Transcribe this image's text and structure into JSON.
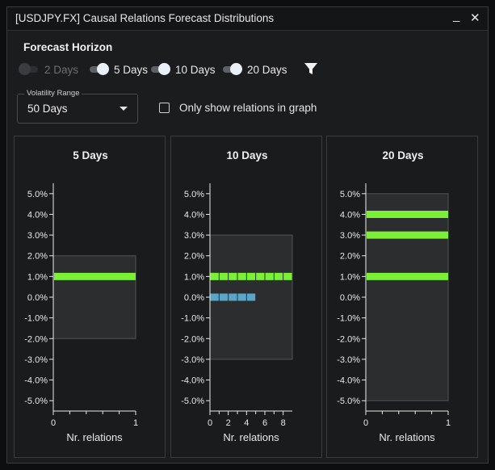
{
  "window": {
    "title": "[USDJPY.FX] Causal Relations Forecast Distributions",
    "minimize_glyph": "_",
    "close_glyph": "✕"
  },
  "forecast_horizon": {
    "label": "Forecast Horizon",
    "toggles": [
      {
        "label": "2 Days",
        "on": false
      },
      {
        "label": "5 Days",
        "on": true
      },
      {
        "label": "10 Days",
        "on": true
      },
      {
        "label": "20 Days",
        "on": true
      }
    ],
    "filter_icon": "filter-icon"
  },
  "volatility_range": {
    "legend": "Volatility Range",
    "value": "50 Days"
  },
  "only_show_relations": {
    "label": "Only show relations in graph",
    "checked": false
  },
  "colors": {
    "accent_green": "#7cf036",
    "accent_blue": "#5aa6c9",
    "range_box": "#2c2d2f"
  },
  "chart_data": [
    {
      "type": "bar",
      "title": "5 Days",
      "xlabel": "Nr. relations",
      "ylabel": "",
      "ylim": [
        -5.5,
        5.5
      ],
      "y_ticks": [
        "5.0%",
        "4.0%",
        "3.0%",
        "2.0%",
        "1.0%",
        "0.0%",
        "-1.0%",
        "-2.0%",
        "-3.0%",
        "-4.0%",
        "-5.0%"
      ],
      "y_tick_values": [
        5,
        4,
        3,
        2,
        1,
        0,
        -1,
        -2,
        -3,
        -4,
        -5
      ],
      "x_ticks": [
        "0",
        "1"
      ],
      "x_tick_values": [
        0,
        1
      ],
      "xlim": [
        0,
        1
      ],
      "minor_x_ticks": [
        0.2,
        0.4,
        0.6,
        0.8
      ],
      "range": [
        -2.0,
        2.0
      ],
      "bars": [
        {
          "y": 1.0,
          "count": 1,
          "color": "green",
          "segmented": false
        }
      ]
    },
    {
      "type": "bar",
      "title": "10 Days",
      "xlabel": "Nr. relations",
      "ylabel": "",
      "ylim": [
        -5.5,
        5.5
      ],
      "y_ticks": [
        "5.0%",
        "4.0%",
        "3.0%",
        "2.0%",
        "1.0%",
        "0.0%",
        "-1.0%",
        "-2.0%",
        "-3.0%",
        "-4.0%",
        "-5.0%"
      ],
      "y_tick_values": [
        5,
        4,
        3,
        2,
        1,
        0,
        -1,
        -2,
        -3,
        -4,
        -5
      ],
      "x_ticks": [
        "0",
        "2",
        "4",
        "6",
        "8"
      ],
      "x_tick_values": [
        0,
        2,
        4,
        6,
        8
      ],
      "xlim": [
        0,
        9
      ],
      "minor_x_ticks": [
        1,
        3,
        5,
        7
      ],
      "range": [
        -3.0,
        3.0
      ],
      "bars": [
        {
          "y": 1.0,
          "count": 9,
          "color": "green",
          "segmented": true
        },
        {
          "y": 0.0,
          "count": 5,
          "color": "blue",
          "segmented": true
        }
      ]
    },
    {
      "type": "bar",
      "title": "20 Days",
      "xlabel": "Nr. relations",
      "ylabel": "",
      "ylim": [
        -5.5,
        5.5
      ],
      "y_ticks": [
        "5.0%",
        "4.0%",
        "3.0%",
        "2.0%",
        "1.0%",
        "0.0%",
        "-1.0%",
        "-2.0%",
        "-3.0%",
        "-4.0%",
        "-5.0%"
      ],
      "y_tick_values": [
        5,
        4,
        3,
        2,
        1,
        0,
        -1,
        -2,
        -3,
        -4,
        -5
      ],
      "x_ticks": [
        "0",
        "1"
      ],
      "x_tick_values": [
        0,
        1
      ],
      "xlim": [
        0,
        1
      ],
      "minor_x_ticks": [
        0.2,
        0.4,
        0.6,
        0.8
      ],
      "range": [
        -5.0,
        5.0
      ],
      "bars": [
        {
          "y": 4.0,
          "count": 1,
          "color": "green",
          "segmented": false
        },
        {
          "y": 3.0,
          "count": 1,
          "color": "green",
          "segmented": false
        },
        {
          "y": 1.0,
          "count": 1,
          "color": "green",
          "segmented": false
        }
      ]
    }
  ]
}
